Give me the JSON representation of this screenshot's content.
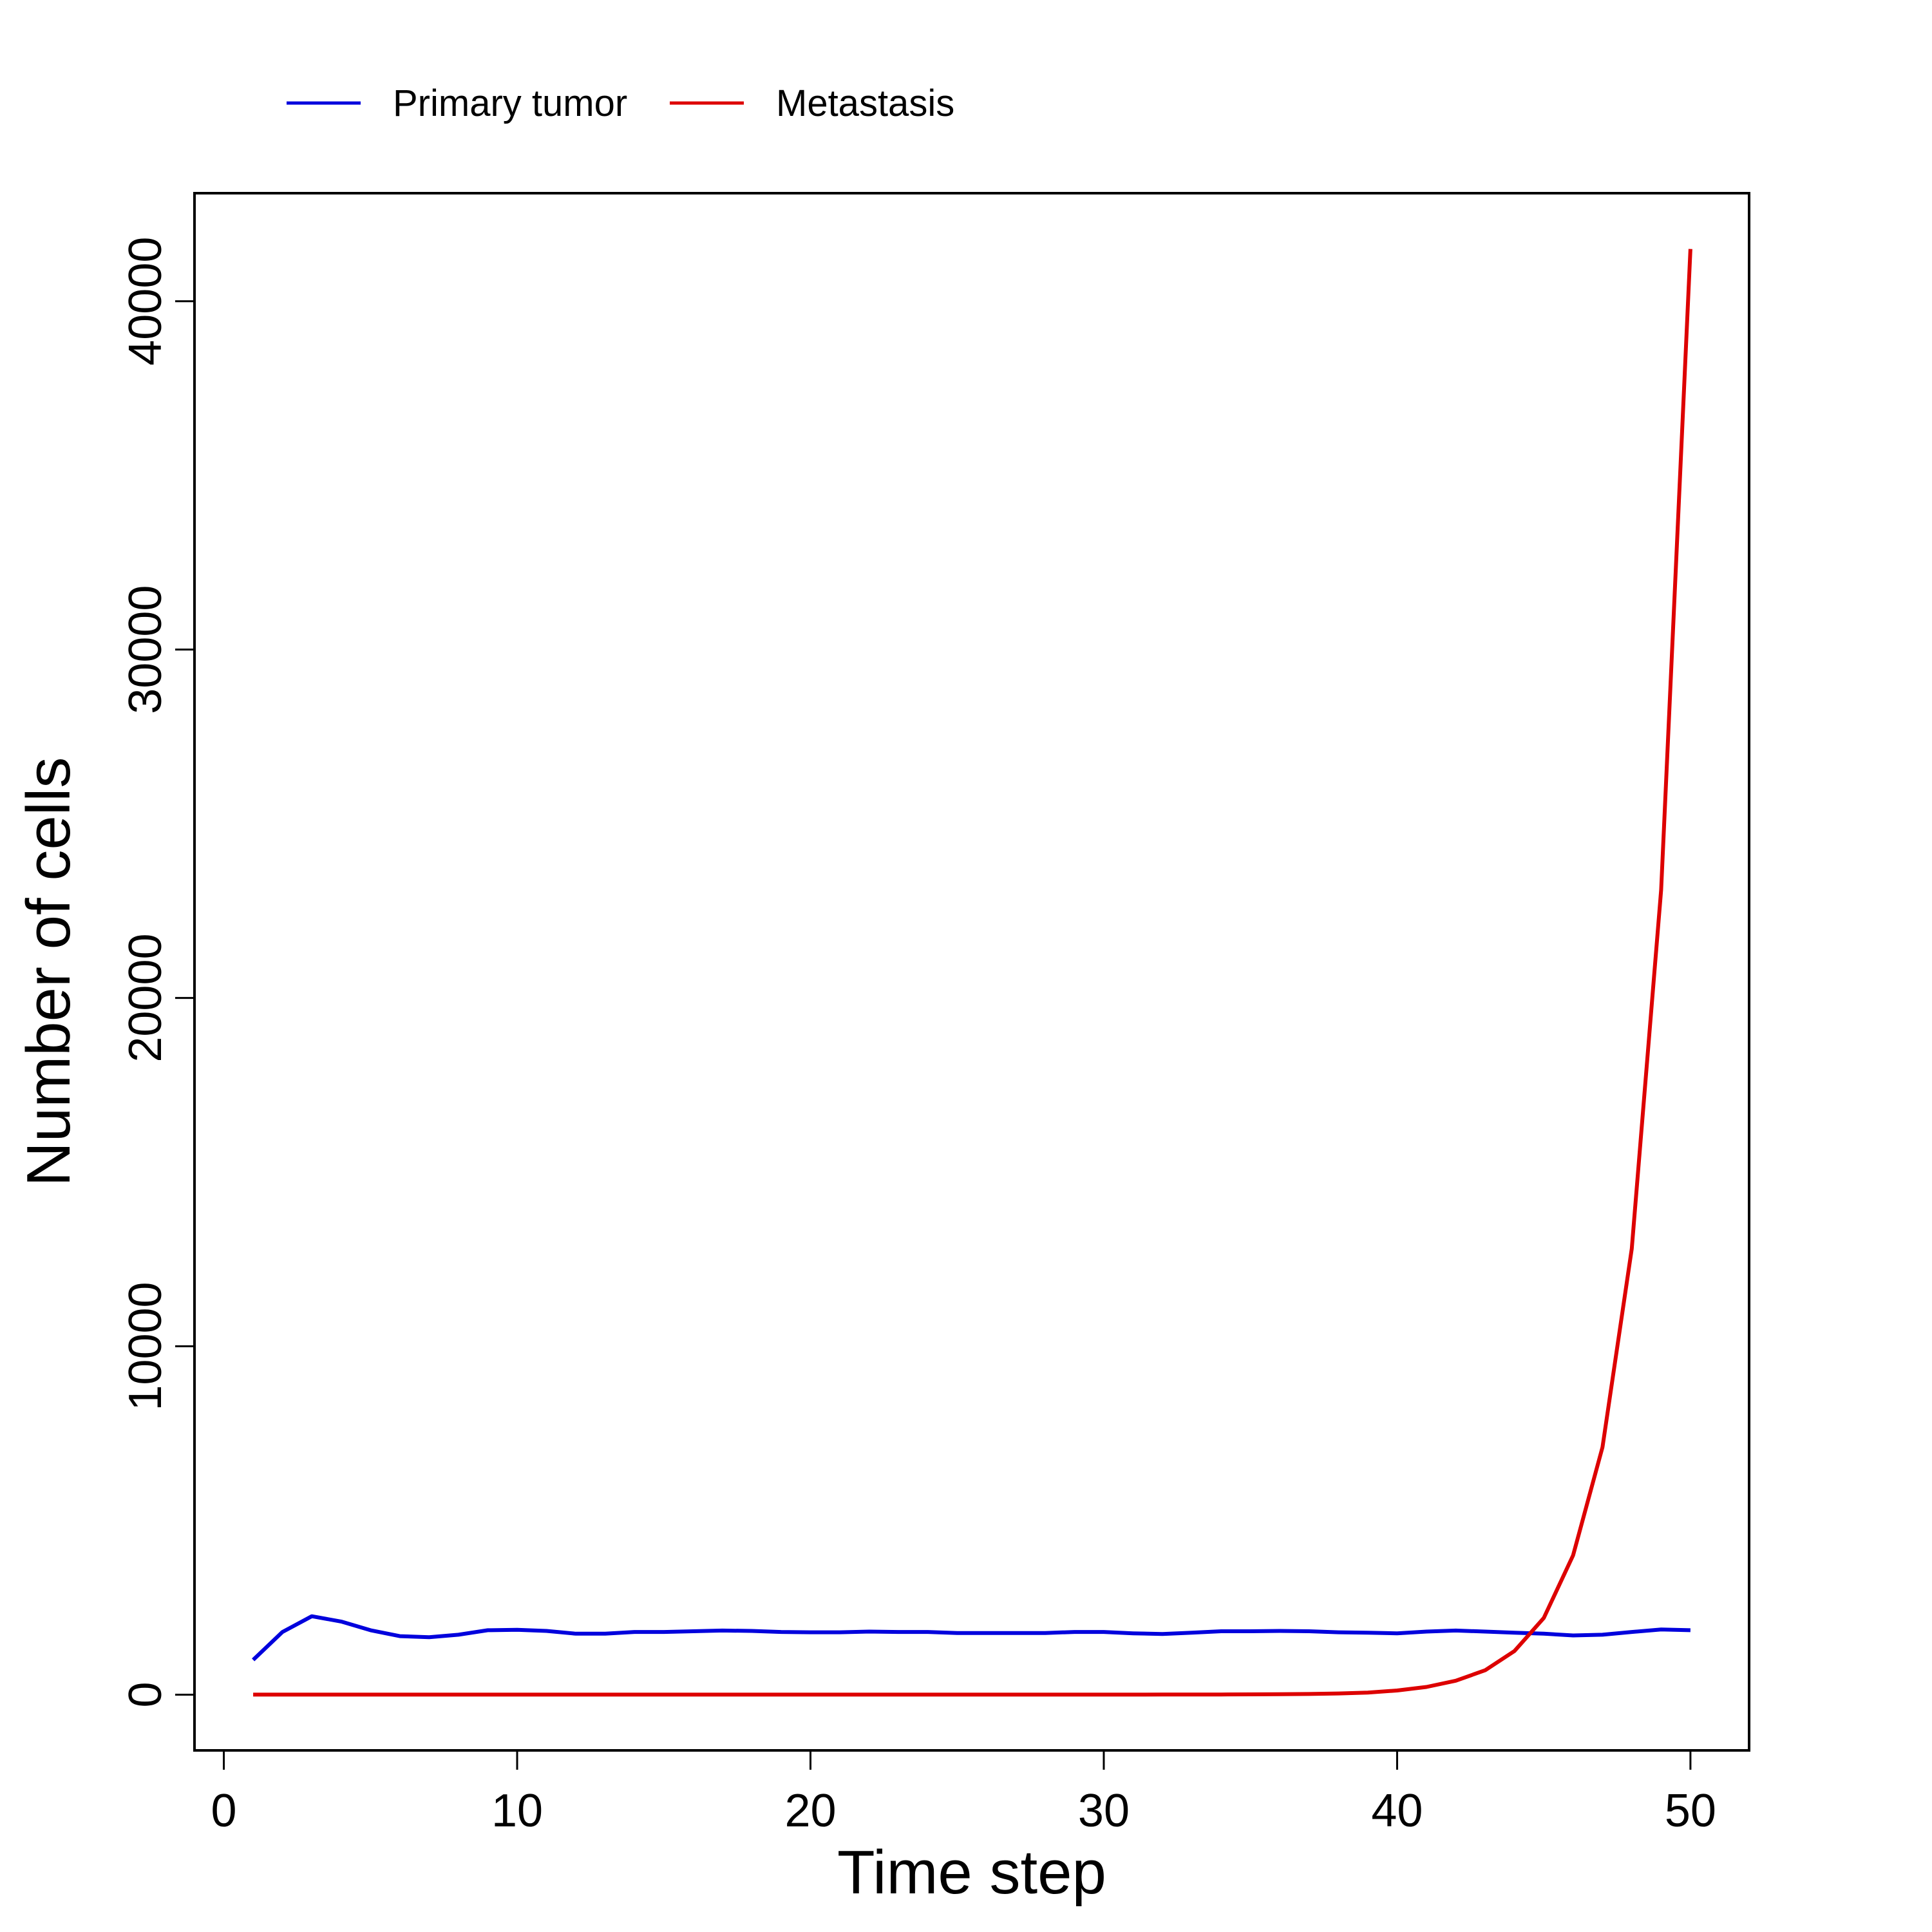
{
  "chart_data": {
    "type": "line",
    "xlabel": "Time step",
    "ylabel": "Number of cells",
    "xlim": [
      -1,
      52
    ],
    "ylim": [
      -1600,
      43100
    ],
    "xticks": [
      0,
      10,
      20,
      30,
      40,
      50
    ],
    "yticks": [
      0,
      10000,
      20000,
      30000,
      40000
    ],
    "grid": false,
    "legend": "top-left, outside plot, horizontal",
    "series": [
      {
        "name": "Primary tumor",
        "color": "#0000dd",
        "x": [
          1,
          2,
          3,
          4,
          5,
          6,
          7,
          8,
          9,
          10,
          11,
          12,
          13,
          14,
          15,
          16,
          17,
          18,
          19,
          20,
          21,
          22,
          23,
          24,
          25,
          26,
          27,
          28,
          29,
          30,
          31,
          32,
          33,
          34,
          35,
          36,
          37,
          38,
          39,
          40,
          41,
          42,
          43,
          44,
          45,
          46,
          47,
          48,
          49,
          50
        ],
        "y": [
          1000,
          1800,
          2250,
          2100,
          1850,
          1680,
          1650,
          1720,
          1850,
          1860,
          1830,
          1750,
          1750,
          1800,
          1800,
          1820,
          1840,
          1830,
          1800,
          1790,
          1790,
          1810,
          1800,
          1800,
          1770,
          1770,
          1770,
          1770,
          1800,
          1800,
          1760,
          1740,
          1780,
          1820,
          1820,
          1830,
          1820,
          1790,
          1780,
          1760,
          1810,
          1840,
          1810,
          1780,
          1750,
          1700,
          1720,
          1800,
          1870,
          1850
        ]
      },
      {
        "name": "Metastasis",
        "color": "#dd0000",
        "x": [
          1,
          2,
          3,
          4,
          5,
          6,
          7,
          8,
          9,
          10,
          11,
          12,
          13,
          14,
          15,
          16,
          17,
          18,
          19,
          20,
          21,
          22,
          23,
          24,
          25,
          26,
          27,
          28,
          29,
          30,
          31,
          32,
          33,
          34,
          35,
          36,
          37,
          38,
          39,
          40,
          41,
          42,
          43,
          44,
          45,
          46,
          47,
          48,
          49,
          50
        ],
        "y": [
          0,
          0,
          0,
          0,
          0,
          0,
          0,
          0,
          0,
          0,
          0,
          0,
          0,
          0,
          0,
          0,
          0,
          0,
          0,
          0,
          0,
          0,
          0,
          0,
          0,
          0,
          0,
          0,
          0,
          0,
          1,
          2,
          3,
          5,
          8,
          12,
          20,
          35,
          60,
          120,
          220,
          400,
          700,
          1250,
          2200,
          4000,
          7100,
          12800,
          23100,
          41500
        ]
      }
    ]
  }
}
